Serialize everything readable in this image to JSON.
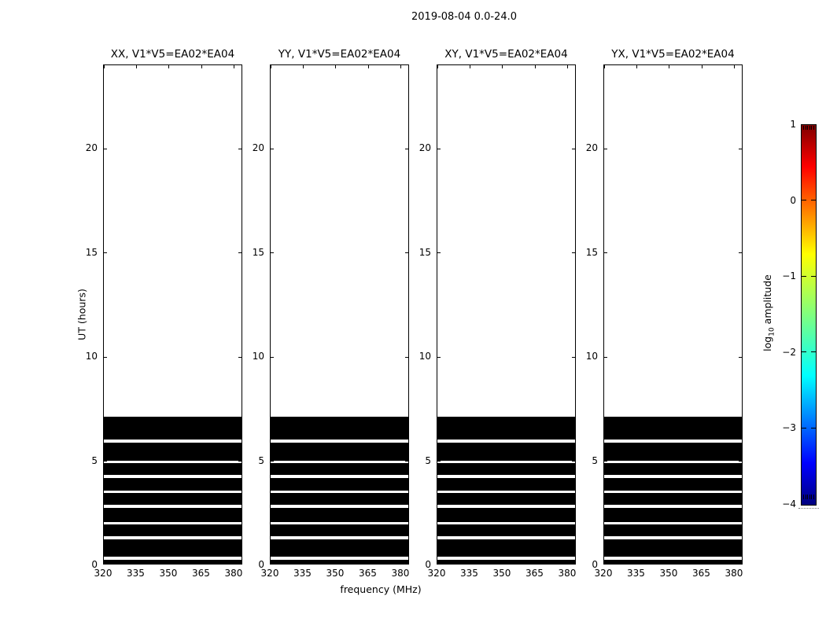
{
  "chart_data": {
    "type": "heatmap",
    "title": "2019-08-04 0.0-24.0",
    "xlabel": "frequency (MHz)",
    "ylabel": "UT (hours)",
    "x_range": [
      320,
      384
    ],
    "x_ticks": [
      320,
      335,
      350,
      365,
      380
    ],
    "y_range": [
      0,
      24
    ],
    "y_ticks": [
      0,
      5,
      10,
      15,
      20
    ],
    "grid": false,
    "panels": [
      {
        "title": "XX, V1*V5=EA02*EA04"
      },
      {
        "title": "YY, V1*V5=EA02*EA04"
      },
      {
        "title": "XY, V1*V5=EA02*EA04"
      },
      {
        "title": "YX, V1*V5=EA02*EA04"
      }
    ],
    "data": {
      "block_ut": [
        0.07,
        7.12
      ],
      "gap_rows_ut": [
        [
          0.28,
          0.43
        ],
        [
          1.25,
          1.38
        ],
        [
          1.95,
          2.07
        ],
        [
          2.76,
          2.89
        ],
        [
          3.48,
          3.6
        ],
        [
          4.2,
          4.33
        ],
        [
          4.9,
          5.03
        ],
        [
          5.88,
          6.02
        ]
      ],
      "fill_color": "#000000"
    },
    "colorbar": {
      "label": "log10 amplitude",
      "label_parts": {
        "pre": "log",
        "sub": "10",
        "post": " amplitude"
      },
      "range": [
        -4,
        1
      ],
      "tick_values": [
        1,
        0,
        -1,
        -2,
        -3,
        -4
      ],
      "tick_labels": [
        "1",
        "0",
        "−1",
        "−2",
        "−3",
        "−4"
      ],
      "colormap": "jet",
      "gradient_stops": [
        "#00007f",
        "#0000ff",
        "#00ffff",
        "#7fff7f",
        "#ffff00",
        "#ff0000",
        "#7f0000"
      ]
    }
  }
}
